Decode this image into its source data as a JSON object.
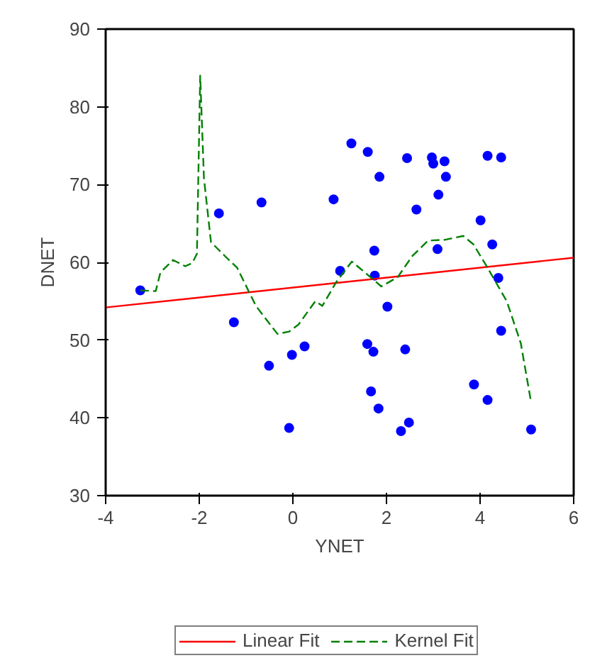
{
  "chart_data": {
    "type": "scatter",
    "xlabel": "YNET",
    "ylabel": "DNET",
    "xlim": [
      -4,
      6
    ],
    "ylim": [
      30,
      90
    ],
    "xticks": [
      -4,
      -2,
      0,
      2,
      4,
      6
    ],
    "yticks": [
      30,
      40,
      50,
      60,
      70,
      80,
      90
    ],
    "grid": false,
    "legend": "bottom",
    "marker": "circle",
    "series": [
      {
        "color": "#0000ff",
        "x": [
          -3.26,
          -1.58,
          -0.67,
          0.87,
          1.25,
          1.01,
          -1.26,
          0.25,
          -0.02,
          -0.51,
          -0.08,
          1.6,
          1.85,
          1.74,
          1.75,
          2.02,
          1.59,
          1.72,
          1.67,
          1.83,
          2.31,
          2.48,
          2.4,
          2.44,
          2.64,
          2.97,
          3.0,
          3.24,
          3.27,
          3.11,
          3.09,
          4.01,
          4.16,
          4.45,
          4.26,
          4.39,
          4.45,
          3.87,
          4.16,
          5.09
        ],
        "values": [
          56.4,
          66.3,
          67.7,
          68.1,
          75.3,
          58.9,
          52.3,
          49.2,
          48.1,
          46.7,
          38.7,
          74.2,
          71.0,
          61.5,
          58.3,
          54.3,
          49.5,
          48.5,
          43.4,
          41.2,
          38.3,
          39.4,
          48.8,
          73.4,
          66.8,
          73.5,
          72.7,
          73.0,
          71.0,
          68.7,
          61.7,
          65.4,
          73.7,
          73.5,
          62.3,
          58.0,
          51.2,
          44.3,
          42.3,
          38.5
        ]
      },
      {
        "type": "line",
        "name": "Linear Fit",
        "color": "#ff0000",
        "line_style": "solid",
        "marker": "none",
        "x": [
          -4,
          6
        ],
        "values": [
          54.2,
          60.6
        ]
      },
      {
        "type": "line",
        "name": "Kernel Fit",
        "color": "#008000",
        "line_style": "dashed",
        "marker": "none",
        "x": [
          -3.26,
          -2.93,
          -2.83,
          -2.56,
          -2.3,
          -2.15,
          -2.05,
          -1.98,
          -1.9,
          -1.75,
          -1.45,
          -1.19,
          -0.79,
          -0.33,
          -0.08,
          0.12,
          0.48,
          0.63,
          0.93,
          1.26,
          1.54,
          1.89,
          2.24,
          2.55,
          2.89,
          3.25,
          3.64,
          3.86,
          4.16,
          4.57,
          4.87,
          5.09
        ],
        "values": [
          56.4,
          56.3,
          58.7,
          60.3,
          59.5,
          59.9,
          61.1,
          84.0,
          70.8,
          62.6,
          60.8,
          59.3,
          54.4,
          50.8,
          51.1,
          52.0,
          55.0,
          54.4,
          57.5,
          60.1,
          58.7,
          56.9,
          58.1,
          60.8,
          62.8,
          62.9,
          63.4,
          62.3,
          59.3,
          55.0,
          49.6,
          42.0
        ]
      }
    ]
  }
}
